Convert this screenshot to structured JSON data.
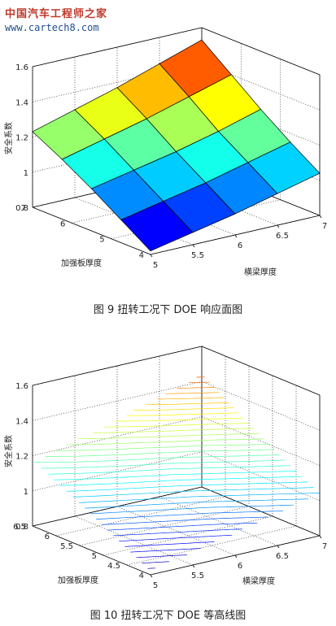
{
  "watermark": {
    "title": "中国汽车工程师之家",
    "url": "www.cartech8.com"
  },
  "figures": [
    {
      "caption": "图 9   扭转工况下 DOE 响应面图"
    },
    {
      "caption": "图 10  扭转工况下 DOE 等高线图"
    }
  ],
  "chart_data": [
    {
      "type": "surface",
      "title": "",
      "xlabel": "横梁厚度",
      "ylabel": "加强板厚度",
      "zlabel": "安全系数",
      "x_ticks": [
        "5",
        "5.5",
        "6",
        "6.5",
        "7"
      ],
      "y_ticks": [
        "4",
        "5",
        "6",
        "7"
      ],
      "z_ticks": [
        "0.8",
        "1",
        "1.2",
        "1.4",
        "1.6"
      ],
      "xlim": [
        5,
        7
      ],
      "ylim": [
        4,
        7
      ],
      "zlim": [
        0.8,
        1.6
      ],
      "grid": true,
      "colormap": "jet",
      "x": [
        5,
        5.5,
        6,
        6.5,
        7
      ],
      "y": [
        4,
        4.75,
        5.5,
        6.25,
        7
      ],
      "z": [
        [
          0.82,
          0.87,
          0.92,
          0.98,
          1.04
        ],
        [
          0.93,
          0.98,
          1.03,
          1.09,
          1.15
        ],
        [
          1.04,
          1.09,
          1.14,
          1.2,
          1.27
        ],
        [
          1.14,
          1.2,
          1.26,
          1.33,
          1.4
        ],
        [
          1.23,
          1.3,
          1.37,
          1.45,
          1.53
        ]
      ]
    },
    {
      "type": "contour3d",
      "title": "",
      "xlabel": "横梁厚度",
      "ylabel": "加强板厚度",
      "zlabel": "安全系数",
      "x_ticks": [
        "5",
        "5.5",
        "6",
        "6.5",
        "7"
      ],
      "y_ticks": [
        "4",
        "4.5",
        "5",
        "5.5",
        "6",
        "6.5"
      ],
      "z_ticks": [
        "0.8",
        "1",
        "1.2",
        "1.4",
        "1.6"
      ],
      "xlim": [
        5,
        7
      ],
      "ylim": [
        4,
        6.5
      ],
      "zlim": [
        0.8,
        1.6
      ],
      "grid": true,
      "colormap": "jet",
      "x": [
        5,
        5.5,
        6,
        6.5,
        7
      ],
      "y": [
        4,
        4.75,
        5.5,
        6.25,
        7
      ],
      "z": [
        [
          0.82,
          0.87,
          0.92,
          0.98,
          1.04
        ],
        [
          0.93,
          0.98,
          1.03,
          1.09,
          1.15
        ],
        [
          1.04,
          1.09,
          1.14,
          1.2,
          1.27
        ],
        [
          1.14,
          1.2,
          1.26,
          1.33,
          1.4
        ],
        [
          1.23,
          1.3,
          1.37,
          1.45,
          1.53
        ]
      ],
      "contour_levels": 40
    }
  ]
}
